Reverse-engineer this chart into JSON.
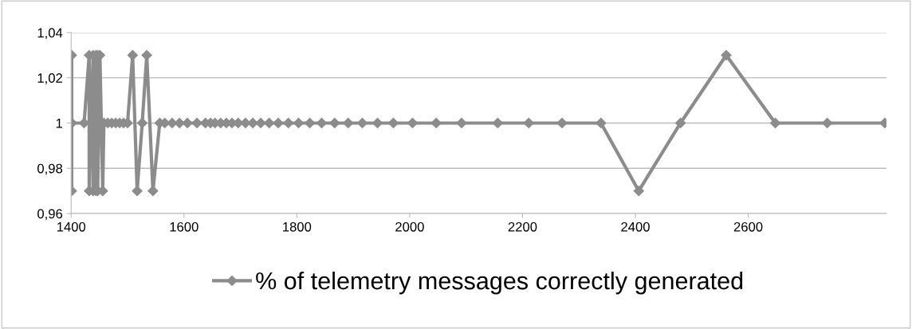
{
  "chart_data": {
    "type": "line",
    "x": [
      1401,
      1401,
      1401,
      1401,
      1423,
      1432,
      1432,
      1435,
      1439,
      1439,
      1444,
      1444,
      1447,
      1447,
      1451,
      1456,
      1458,
      1465,
      1472,
      1479,
      1486,
      1493,
      1500,
      1509,
      1517,
      1526,
      1534,
      1545,
      1557,
      1566,
      1579,
      1592,
      1606,
      1623,
      1638,
      1647,
      1655,
      1665,
      1675,
      1685,
      1696,
      1709,
      1722,
      1736,
      1751,
      1767,
      1785,
      1803,
      1823,
      1844,
      1867,
      1891,
      1916,
      1943,
      1971,
      2005,
      2047,
      2092,
      2156,
      2211,
      2270,
      2339,
      2406,
      2480,
      2561,
      2648,
      2740,
      2842
    ],
    "series": [
      {
        "name": "% of telemetry messages correctly generated",
        "color": "#8c8c8c",
        "values": [
          1,
          1.03,
          0.97,
          1,
          1,
          1.03,
          0.97,
          1,
          1.03,
          0.97,
          1.03,
          0.97,
          1.03,
          0.97,
          1.03,
          0.97,
          1,
          1,
          1,
          1,
          1,
          1,
          1,
          1.03,
          0.97,
          1,
          1.03,
          0.97,
          1,
          1,
          1,
          1,
          1,
          1,
          1,
          1,
          1,
          1,
          1,
          1,
          1,
          1,
          1,
          1,
          1,
          1,
          1,
          1,
          1,
          1,
          1,
          1,
          1,
          1,
          1,
          1,
          1,
          1,
          1,
          1,
          1,
          1,
          0.97,
          1,
          1.03,
          1,
          1,
          1
        ]
      }
    ],
    "xlim": [
      1400,
      2845
    ],
    "xticks": [
      1400,
      1600,
      1800,
      2000,
      2200,
      2400,
      2600
    ],
    "ylim": [
      0.96,
      1.04
    ],
    "yticks": [
      {
        "value": 0.96,
        "label": "0,96"
      },
      {
        "value": 0.98,
        "label": "0,98"
      },
      {
        "value": 1,
        "label": "1"
      },
      {
        "value": 1.02,
        "label": "1,02"
      },
      {
        "value": 1.04,
        "label": "1,04"
      }
    ],
    "grid": "y",
    "legend": "bottom",
    "marker": "diamond",
    "line_style": "solid"
  }
}
